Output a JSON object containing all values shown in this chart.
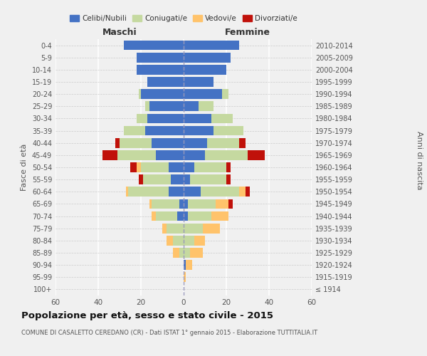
{
  "age_groups": [
    "100+",
    "95-99",
    "90-94",
    "85-89",
    "80-84",
    "75-79",
    "70-74",
    "65-69",
    "60-64",
    "55-59",
    "50-54",
    "45-49",
    "40-44",
    "35-39",
    "30-34",
    "25-29",
    "20-24",
    "15-19",
    "10-14",
    "5-9",
    "0-4"
  ],
  "birth_years": [
    "≤ 1914",
    "1915-1919",
    "1920-1924",
    "1925-1929",
    "1930-1934",
    "1935-1939",
    "1940-1944",
    "1945-1949",
    "1950-1954",
    "1955-1959",
    "1960-1964",
    "1965-1969",
    "1970-1974",
    "1975-1979",
    "1980-1984",
    "1985-1989",
    "1990-1994",
    "1995-1999",
    "2000-2004",
    "2005-2009",
    "2010-2014"
  ],
  "maschi": {
    "celibi": [
      0,
      0,
      0,
      0,
      0,
      0,
      3,
      2,
      7,
      6,
      7,
      13,
      15,
      18,
      17,
      16,
      20,
      17,
      22,
      22,
      28
    ],
    "coniugati": [
      0,
      0,
      0,
      2,
      5,
      8,
      10,
      13,
      19,
      13,
      13,
      18,
      15,
      10,
      5,
      2,
      1,
      0,
      0,
      0,
      0
    ],
    "vedovi": [
      0,
      0,
      0,
      3,
      3,
      2,
      2,
      1,
      1,
      0,
      2,
      0,
      0,
      0,
      0,
      0,
      0,
      0,
      0,
      0,
      0
    ],
    "divorziati": [
      0,
      0,
      0,
      0,
      0,
      0,
      0,
      0,
      0,
      2,
      3,
      7,
      2,
      0,
      0,
      0,
      0,
      0,
      0,
      0,
      0
    ]
  },
  "femmine": {
    "nubili": [
      0,
      0,
      1,
      0,
      0,
      0,
      2,
      2,
      8,
      3,
      5,
      10,
      11,
      14,
      13,
      7,
      18,
      14,
      20,
      22,
      26
    ],
    "coniugate": [
      0,
      0,
      0,
      3,
      5,
      9,
      11,
      13,
      18,
      17,
      15,
      20,
      15,
      14,
      10,
      7,
      3,
      0,
      0,
      0,
      0
    ],
    "vedove": [
      0,
      1,
      3,
      6,
      5,
      8,
      8,
      6,
      3,
      0,
      0,
      0,
      0,
      0,
      0,
      0,
      0,
      0,
      0,
      0,
      0
    ],
    "divorziate": [
      0,
      0,
      0,
      0,
      0,
      0,
      0,
      2,
      2,
      2,
      2,
      8,
      3,
      0,
      0,
      0,
      0,
      0,
      0,
      0,
      0
    ]
  },
  "colors": {
    "celibi": "#4472c4",
    "coniugati": "#c5d9a0",
    "vedovi": "#ffc36b",
    "divorziati": "#c0110a"
  },
  "xlim": 60,
  "title": "Popolazione per età, sesso e stato civile - 2015",
  "subtitle": "COMUNE DI CASALETTO CEREDANO (CR) - Dati ISTAT 1° gennaio 2015 - Elaborazione TUTTITALIA.IT",
  "ylabel_left": "Fasce di età",
  "ylabel_right": "Anni di nascita",
  "xlabel_maschi": "Maschi",
  "xlabel_femmine": "Femmine",
  "legend_labels": [
    "Celibi/Nubili",
    "Coniugati/e",
    "Vedovi/e",
    "Divorziati/e"
  ],
  "bg_color": "#f0f0f0"
}
